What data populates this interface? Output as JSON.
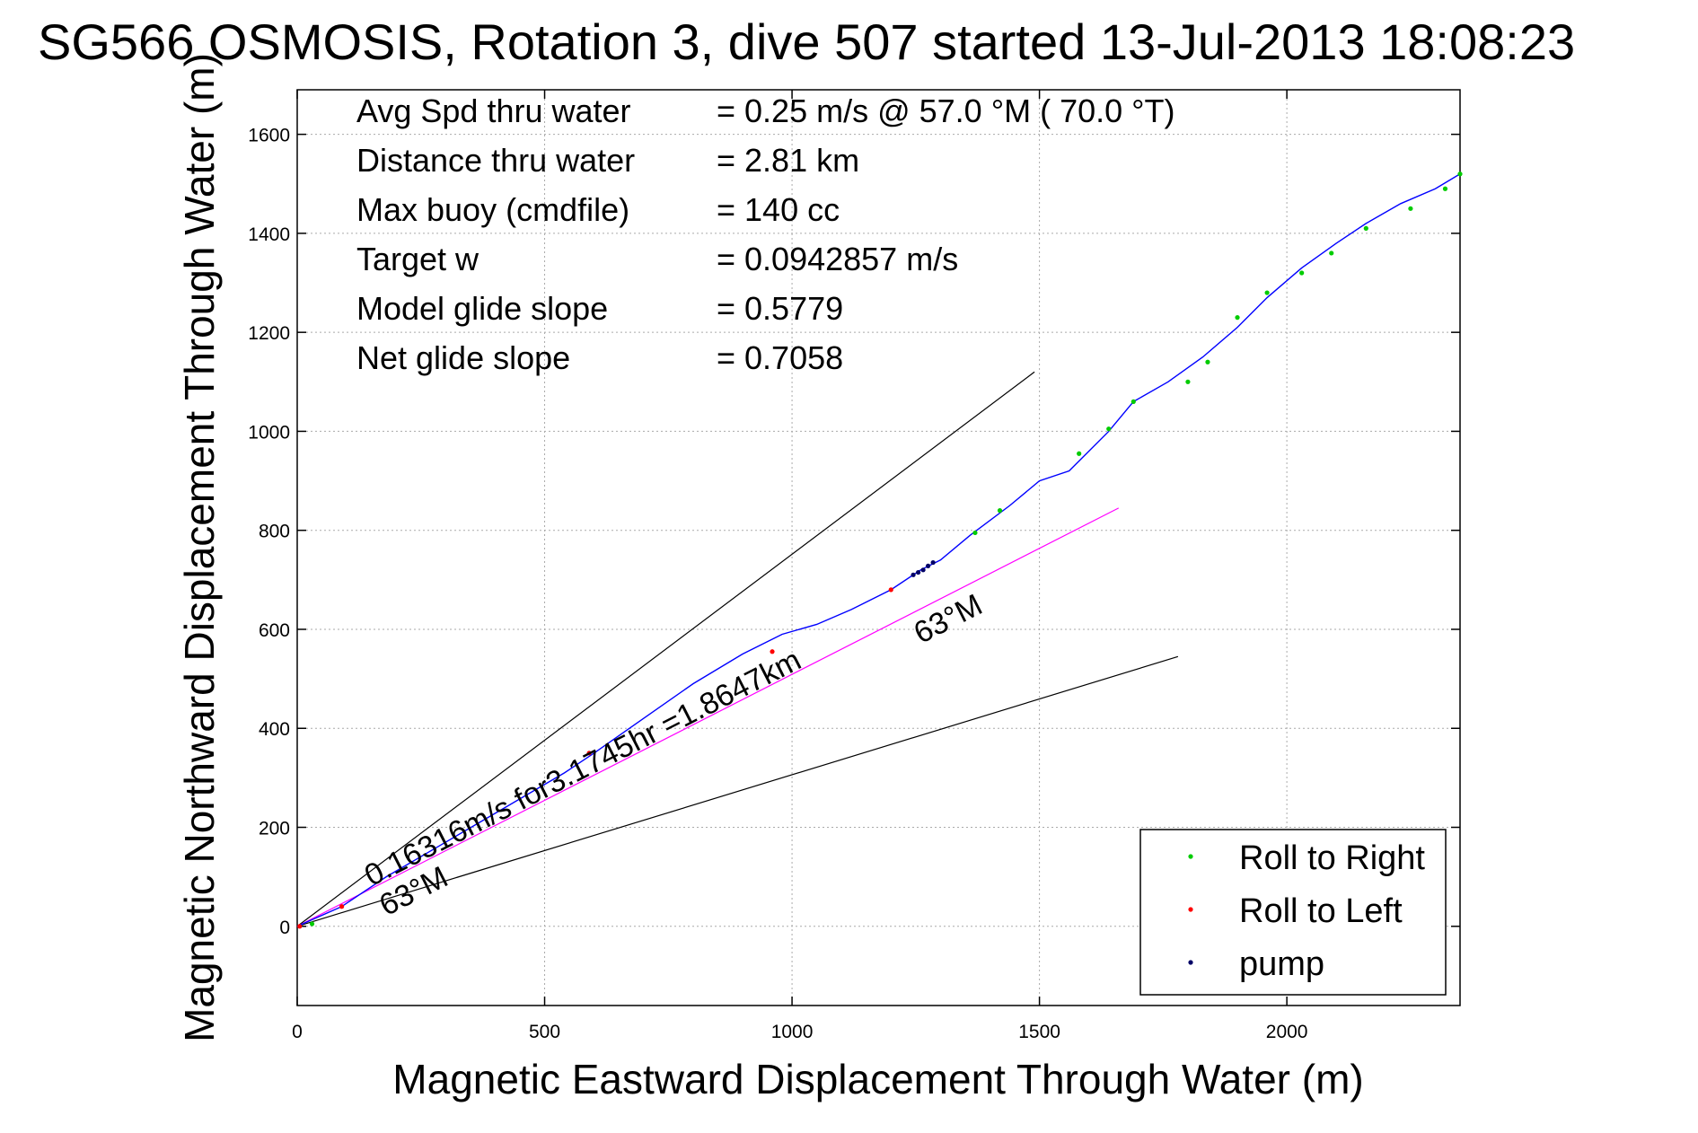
{
  "title": "SG566 OSMOSIS, Rotation 3, dive 507 started 13-Jul-2013 18:08:23",
  "chart_data": {
    "type": "line",
    "xlabel": "Magnetic Eastward Displacement Through Water (m)",
    "ylabel": "Magnetic Northward Displacement Through Water (m)",
    "xlim": [
      0,
      2350
    ],
    "ylim": [
      -160,
      1690
    ],
    "xticks": [
      0,
      500,
      1000,
      1500,
      2000
    ],
    "yticks": [
      0,
      200,
      400,
      600,
      800,
      1000,
      1200,
      1400,
      1600
    ],
    "grid": true,
    "stats": [
      {
        "label": "Avg Spd thru water",
        "value": "=  0.25 m/s @  57.0 °M ( 70.0 °T)"
      },
      {
        "label": "Distance thru water",
        "value": "=  2.81 km"
      },
      {
        "label": "Max buoy (cmdfile)",
        "value": "= 140 cc"
      },
      {
        "label": "Target w",
        "value": "= 0.0942857 m/s"
      },
      {
        "label": "Model glide slope",
        "value": "= 0.5779"
      },
      {
        "label": "Net glide slope",
        "value": "= 0.7058"
      }
    ],
    "track": {
      "color": "#0000ff",
      "x": [
        0,
        90,
        180,
        300,
        420,
        540,
        600,
        700,
        800,
        900,
        980,
        1050,
        1120,
        1200,
        1260,
        1300,
        1360,
        1440,
        1500,
        1560,
        1640,
        1690,
        1760,
        1830,
        1900,
        1960,
        2030,
        2100,
        2160,
        2230,
        2300,
        2350
      ],
      "y": [
        0,
        40,
        100,
        170,
        240,
        310,
        350,
        420,
        490,
        550,
        590,
        610,
        640,
        680,
        720,
        740,
        790,
        850,
        900,
        920,
        1000,
        1060,
        1100,
        1150,
        1210,
        1270,
        1330,
        1380,
        1420,
        1460,
        1490,
        1520
      ]
    },
    "heading_line": {
      "color": "#ff00ff",
      "x": [
        0,
        1660
      ],
      "y": [
        0,
        845
      ]
    },
    "bound_lines": [
      {
        "color": "#000000",
        "x": [
          0,
          1490
        ],
        "y": [
          0,
          1120
        ]
      },
      {
        "color": "#000000",
        "x": [
          0,
          1780
        ],
        "y": [
          0,
          545
        ]
      }
    ],
    "markers": {
      "roll_right": {
        "color": "#00cc00",
        "x": [
          30,
          1370,
          1420,
          1580,
          1640,
          1690,
          1800,
          1840,
          1900,
          1960,
          2030,
          2090,
          2160,
          2250,
          2320,
          2350
        ],
        "y": [
          5,
          795,
          840,
          955,
          1005,
          1060,
          1100,
          1140,
          1230,
          1280,
          1320,
          1360,
          1410,
          1450,
          1490,
          1520
        ]
      },
      "roll_left": {
        "color": "#ff0000",
        "x": [
          5,
          90,
          590,
          960,
          1200
        ],
        "y": [
          0,
          40,
          350,
          555,
          680
        ]
      },
      "pump": {
        "color": "#000066",
        "x": [
          1245,
          1255,
          1265,
          1275,
          1285
        ],
        "y": [
          710,
          715,
          720,
          728,
          735
        ]
      }
    },
    "annotations": [
      {
        "text": "0.16316m/s for3.1745hr =1.8647km",
        "x": 150,
        "y": 80,
        "angle_deg": -27
      },
      {
        "text": "63°M",
        "x": 1260,
        "y": 570,
        "angle_deg": -27
      },
      {
        "text": "63°M",
        "x": 180,
        "y": 20,
        "angle_deg": -27
      }
    ],
    "legend": {
      "position": "bottom-right",
      "entries": [
        {
          "name": "Roll to Right",
          "color": "#00cc00"
        },
        {
          "name": "Roll to Left",
          "color": "#ff0000"
        },
        {
          "name": "pump",
          "color": "#000066"
        }
      ]
    }
  }
}
